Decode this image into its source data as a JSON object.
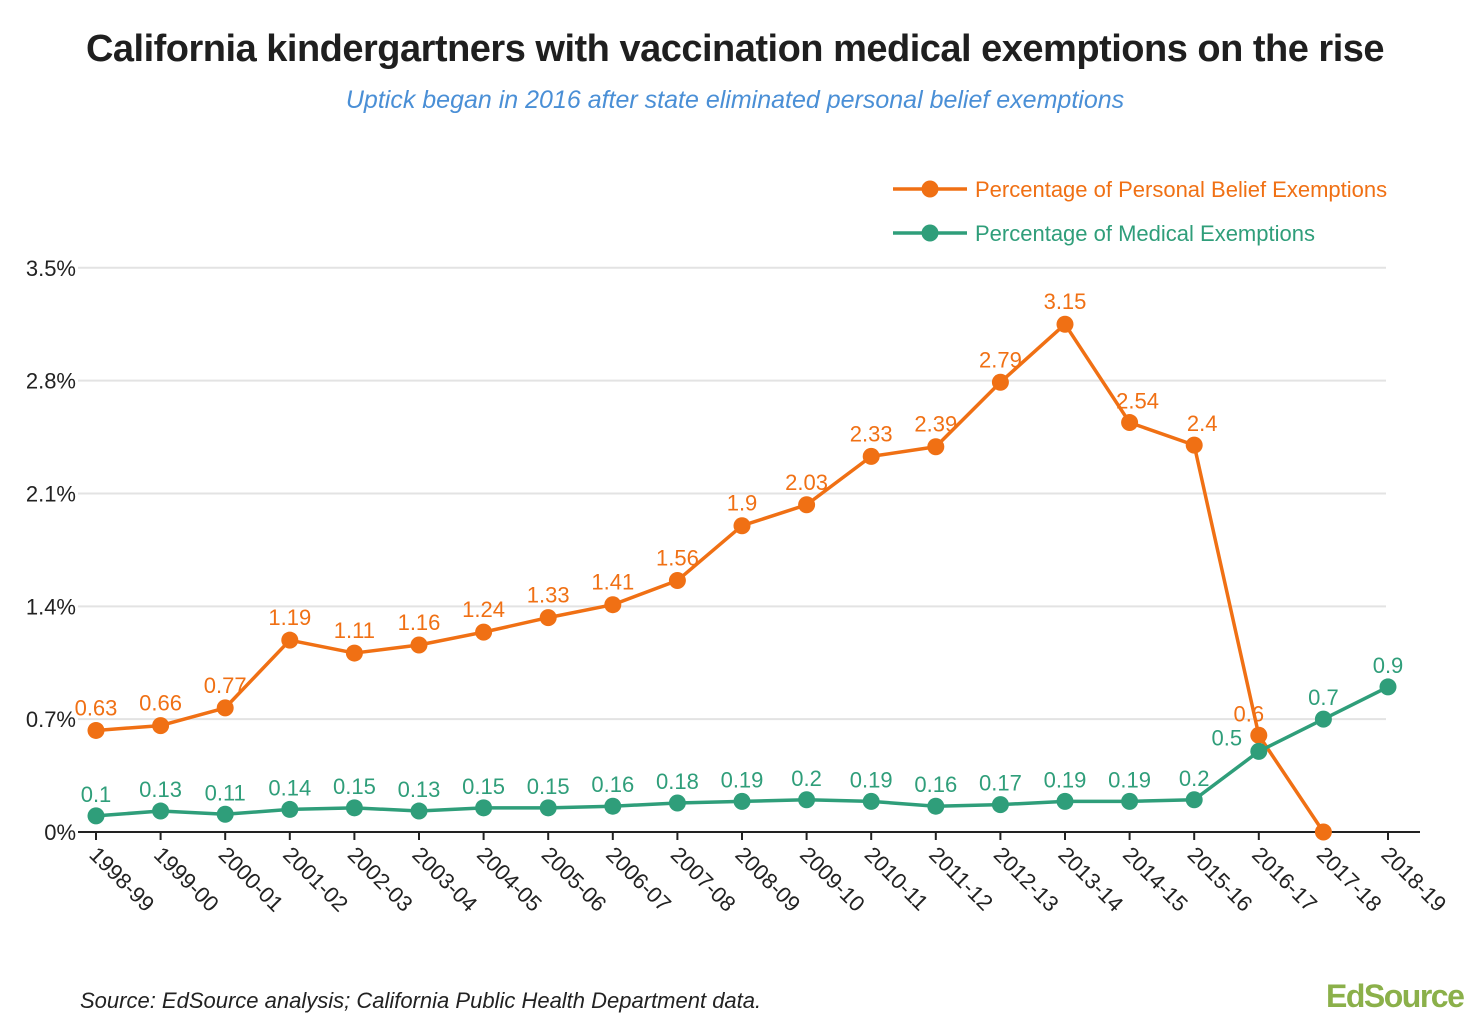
{
  "title": "California kindergartners with vaccination medical exemptions on the rise",
  "subtitle": "Uptick began in 2016 after state eliminated personal belief exemptions",
  "source": "Source: EdSource analysis; California Public Health Department data.",
  "logo": "EdSource",
  "colors": {
    "pbe": "#f07014",
    "med": "#2f9e7a",
    "grid": "#e3e3e3",
    "axis": "#222222"
  },
  "chart_data": {
    "type": "line",
    "categories": [
      "1998-99",
      "1999-00",
      "2000-01",
      "2001-02",
      "2002-03",
      "2003-04",
      "2004-05",
      "2005-06",
      "2006-07",
      "2007-08",
      "2008-09",
      "2009-10",
      "2010-11",
      "2011-12",
      "2012-13",
      "2013-14",
      "2014-15",
      "2015-16",
      "2016-17",
      "2017-18",
      "2018-19"
    ],
    "yticks": [
      0,
      0.7,
      1.4,
      2.1,
      2.8,
      3.5
    ],
    "ytick_labels": [
      "0%",
      "0.7%",
      "1.4%",
      "2.1%",
      "2.8%",
      "3.5%"
    ],
    "ylim": [
      0,
      3.5
    ],
    "legend_position": "top-right",
    "grid": true,
    "series": [
      {
        "name": "Percentage of Personal Belief Exemptions",
        "color": "#f07014",
        "values": [
          0.63,
          0.66,
          0.77,
          1.19,
          1.11,
          1.16,
          1.24,
          1.33,
          1.41,
          1.56,
          1.9,
          2.03,
          2.33,
          2.39,
          2.79,
          3.15,
          2.54,
          2.4,
          0.6,
          0,
          null
        ],
        "labels": [
          "0.63",
          "0.66",
          "0.77",
          "1.19",
          "1.11",
          "1.16",
          "1.24",
          "1.33",
          "1.41",
          "1.56",
          "1.9",
          "2.03",
          "2.33",
          "2.39",
          "2.79",
          "3.15",
          "2.54",
          "2.4",
          "0.6",
          "",
          ""
        ]
      },
      {
        "name": "Percentage of Medical Exemptions",
        "color": "#2f9e7a",
        "values": [
          0.1,
          0.13,
          0.11,
          0.14,
          0.15,
          0.13,
          0.15,
          0.15,
          0.16,
          0.18,
          0.19,
          0.2,
          0.19,
          0.16,
          0.17,
          0.19,
          0.19,
          0.2,
          0.5,
          0.7,
          0.9
        ],
        "labels": [
          "0.1",
          "0.13",
          "0.11",
          "0.14",
          "0.15",
          "0.13",
          "0.15",
          "0.15",
          "0.16",
          "0.18",
          "0.19",
          "0.2",
          "0.19",
          "0.16",
          "0.17",
          "0.19",
          "0.19",
          "0.2",
          "0.5",
          "0.7",
          "0.9"
        ]
      }
    ]
  }
}
